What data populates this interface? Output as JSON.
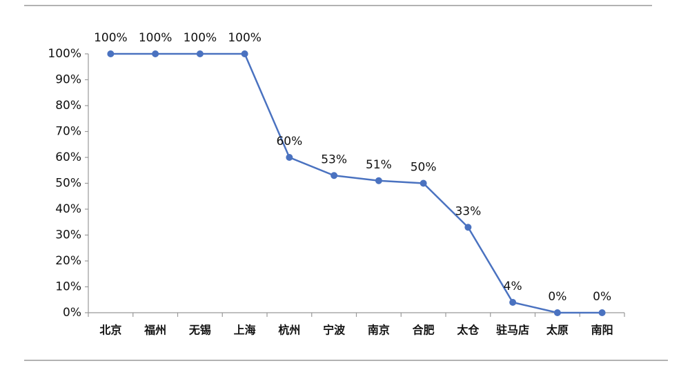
{
  "chart_data": {
    "type": "line",
    "categories": [
      "北京",
      "福州",
      "无锡",
      "上海",
      "杭州",
      "宁波",
      "南京",
      "合肥",
      "太仓",
      "驻马店",
      "太原",
      "南阳"
    ],
    "series": [
      {
        "color": "#4a72c0",
        "values": [
          100,
          100,
          100,
          100,
          60,
          53,
          51,
          50,
          33,
          4,
          0,
          0
        ],
        "value_labels": [
          "100%",
          "100%",
          "100%",
          "100%",
          "60%",
          "53%",
          "51%",
          "50%",
          "33%",
          "4%",
          "0%",
          "0%"
        ]
      }
    ],
    "ylim": [
      0,
      100
    ],
    "yticks": [
      {
        "value": 0,
        "label": "0%"
      },
      {
        "value": 10,
        "label": "10%"
      },
      {
        "value": 20,
        "label": "20%"
      },
      {
        "value": 30,
        "label": "30%"
      },
      {
        "value": 40,
        "label": "40%"
      },
      {
        "value": 50,
        "label": "50%"
      },
      {
        "value": 60,
        "label": "60%"
      },
      {
        "value": 70,
        "label": "70%"
      },
      {
        "value": 80,
        "label": "80%"
      },
      {
        "value": 90,
        "label": "90%"
      },
      {
        "value": 100,
        "label": "100%"
      }
    ]
  }
}
